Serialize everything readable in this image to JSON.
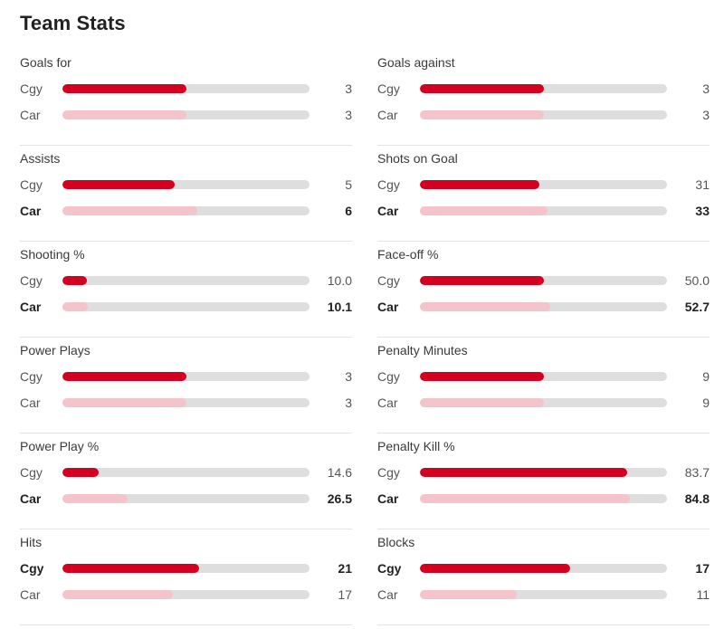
{
  "title": "Team Stats",
  "colors": {
    "home": "#d4001f",
    "away": "#f5c3ca",
    "track": "#dedede"
  },
  "stats": [
    {
      "label": "Goals for",
      "rows": [
        {
          "team": "Cgy",
          "value": "3",
          "fraction": 0.5,
          "leader": false
        },
        {
          "team": "Car",
          "value": "3",
          "fraction": 0.5,
          "leader": false
        }
      ]
    },
    {
      "label": "Goals against",
      "rows": [
        {
          "team": "Cgy",
          "value": "3",
          "fraction": 0.5,
          "leader": false
        },
        {
          "team": "Car",
          "value": "3",
          "fraction": 0.5,
          "leader": false
        }
      ]
    },
    {
      "label": "Assists",
      "rows": [
        {
          "team": "Cgy",
          "value": "5",
          "fraction": 0.455,
          "leader": false
        },
        {
          "team": "Car",
          "value": "6",
          "fraction": 0.545,
          "leader": true
        }
      ]
    },
    {
      "label": "Shots on Goal",
      "rows": [
        {
          "team": "Cgy",
          "value": "31",
          "fraction": 0.484,
          "leader": false
        },
        {
          "team": "Car",
          "value": "33",
          "fraction": 0.516,
          "leader": true
        }
      ]
    },
    {
      "label": "Shooting %",
      "rows": [
        {
          "team": "Cgy",
          "value": "10.0",
          "fraction": 0.1,
          "leader": false
        },
        {
          "team": "Car",
          "value": "10.1",
          "fraction": 0.101,
          "leader": true
        }
      ]
    },
    {
      "label": "Face-off %",
      "rows": [
        {
          "team": "Cgy",
          "value": "50.0",
          "fraction": 0.5,
          "leader": false
        },
        {
          "team": "Car",
          "value": "52.7",
          "fraction": 0.527,
          "leader": true
        }
      ]
    },
    {
      "label": "Power Plays",
      "rows": [
        {
          "team": "Cgy",
          "value": "3",
          "fraction": 0.5,
          "leader": false
        },
        {
          "team": "Car",
          "value": "3",
          "fraction": 0.5,
          "leader": false
        }
      ]
    },
    {
      "label": "Penalty Minutes",
      "rows": [
        {
          "team": "Cgy",
          "value": "9",
          "fraction": 0.5,
          "leader": false
        },
        {
          "team": "Car",
          "value": "9",
          "fraction": 0.5,
          "leader": false
        }
      ]
    },
    {
      "label": "Power Play %",
      "rows": [
        {
          "team": "Cgy",
          "value": "14.6",
          "fraction": 0.146,
          "leader": false
        },
        {
          "team": "Car",
          "value": "26.5",
          "fraction": 0.265,
          "leader": true
        }
      ]
    },
    {
      "label": "Penalty Kill %",
      "rows": [
        {
          "team": "Cgy",
          "value": "83.7",
          "fraction": 0.837,
          "leader": false
        },
        {
          "team": "Car",
          "value": "84.8",
          "fraction": 0.848,
          "leader": true
        }
      ]
    },
    {
      "label": "Hits",
      "rows": [
        {
          "team": "Cgy",
          "value": "21",
          "fraction": 0.553,
          "leader": true
        },
        {
          "team": "Car",
          "value": "17",
          "fraction": 0.447,
          "leader": false
        }
      ]
    },
    {
      "label": "Blocks",
      "rows": [
        {
          "team": "Cgy",
          "value": "17",
          "fraction": 0.607,
          "leader": true
        },
        {
          "team": "Car",
          "value": "11",
          "fraction": 0.393,
          "leader": false
        }
      ]
    }
  ]
}
